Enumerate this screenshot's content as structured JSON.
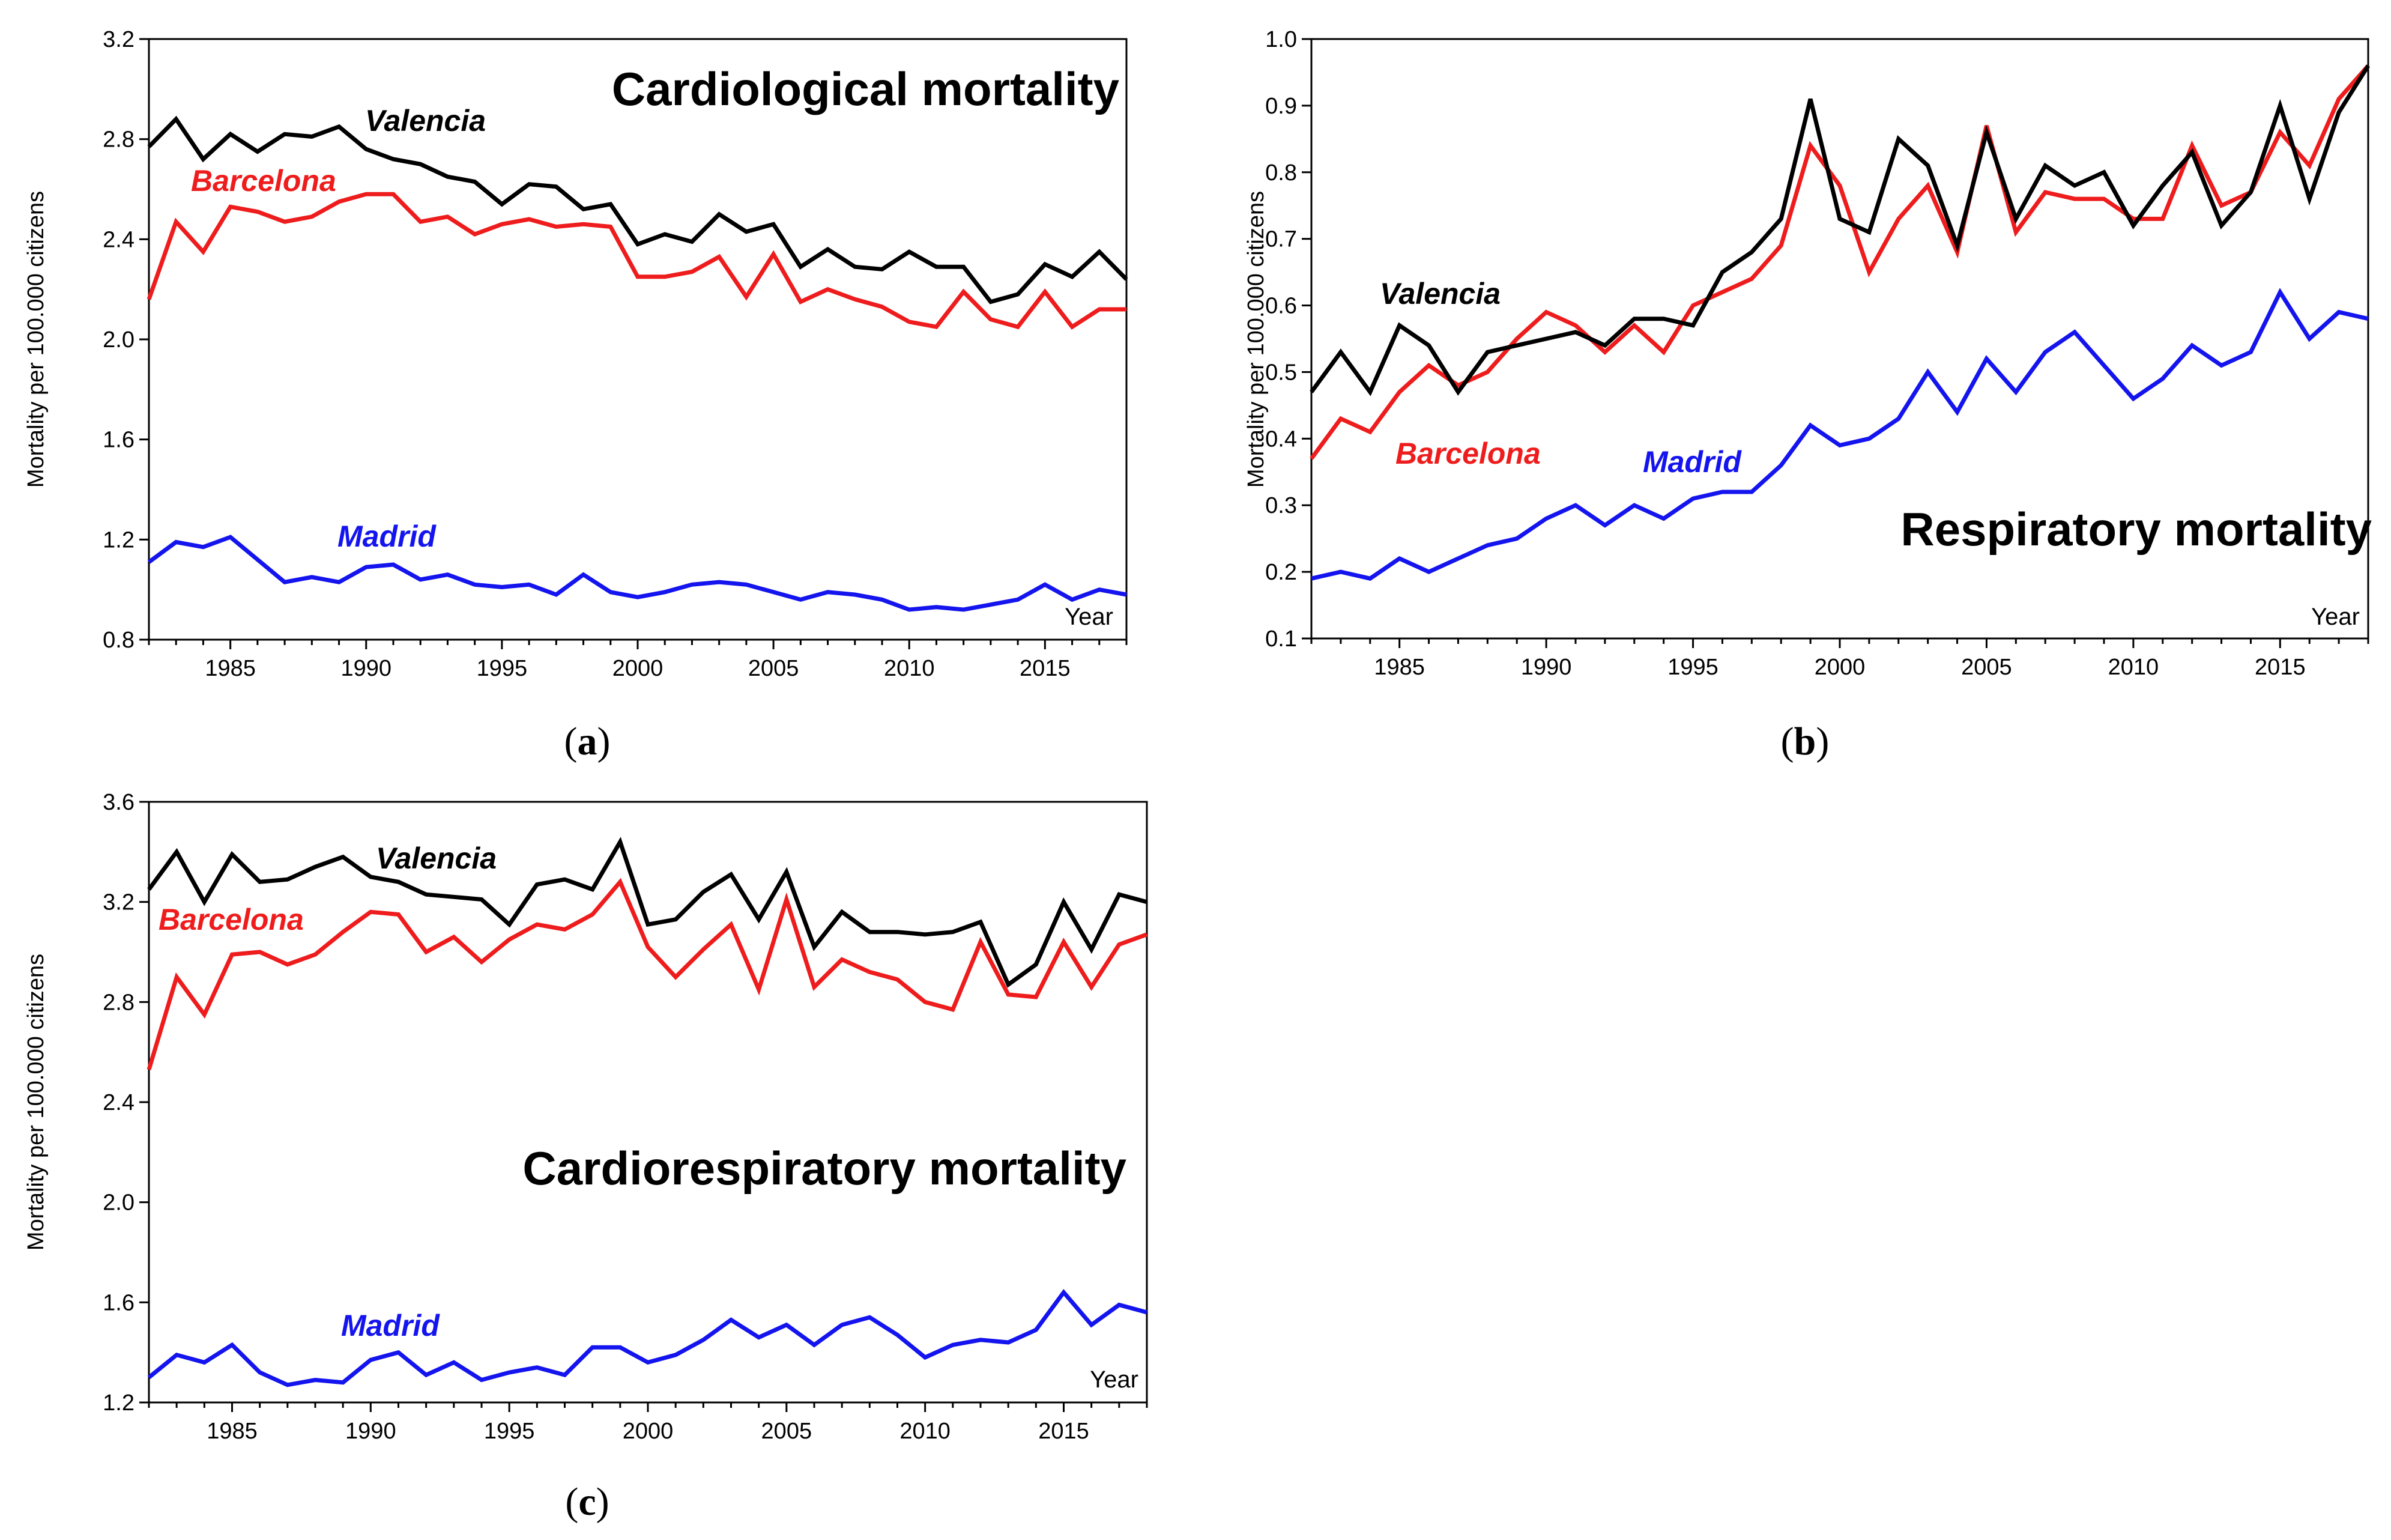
{
  "colors": {
    "valencia": "#000000",
    "barcelona": "#ee1c1c",
    "madrid": "#1414ee"
  },
  "chart_data": [
    {
      "type": "line",
      "panel": "(a)",
      "panel_letter": "a",
      "title": "Cardiological mortality",
      "ylabel": "Mortality per 100.000 citizens",
      "xlabel": "Year",
      "xlim": [
        1982,
        2018
      ],
      "ylim": [
        0.8,
        3.2
      ],
      "yticks": [
        0.8,
        1.2,
        1.6,
        2.0,
        2.4,
        2.8,
        3.2
      ],
      "ytick_labels": [
        "0.8",
        "1.2",
        "1.6",
        "2.0",
        "2.4",
        "2.8",
        "3.2"
      ],
      "xticks": [
        1985,
        1990,
        1995,
        2000,
        2005,
        2010,
        2015
      ],
      "xtick_labels": [
        "1985",
        "1990",
        "1995",
        "2000",
        "2005",
        "2010",
        "2015"
      ],
      "x": [
        1982,
        1983,
        1984,
        1985,
        1986,
        1987,
        1988,
        1989,
        1990,
        1991,
        1992,
        1993,
        1994,
        1995,
        1996,
        1997,
        1998,
        1999,
        2000,
        2001,
        2002,
        2003,
        2004,
        2005,
        2006,
        2007,
        2008,
        2009,
        2010,
        2011,
        2012,
        2013,
        2014,
        2015,
        2016,
        2017,
        2018
      ],
      "series": [
        {
          "name": "Valencia",
          "color": "#000000",
          "values": [
            2.77,
            2.88,
            2.72,
            2.82,
            2.75,
            2.82,
            2.81,
            2.85,
            2.76,
            2.72,
            2.7,
            2.65,
            2.63,
            2.54,
            2.62,
            2.61,
            2.52,
            2.54,
            2.38,
            2.42,
            2.39,
            2.5,
            2.43,
            2.46,
            2.29,
            2.36,
            2.29,
            2.28,
            2.35,
            2.29,
            2.29,
            2.15,
            2.18,
            2.3,
            2.25,
            2.35,
            2.24
          ]
        },
        {
          "name": "Barcelona",
          "color": "#ee1c1c",
          "values": [
            2.16,
            2.47,
            2.35,
            2.53,
            2.51,
            2.47,
            2.49,
            2.55,
            2.58,
            2.58,
            2.47,
            2.49,
            2.42,
            2.46,
            2.48,
            2.45,
            2.46,
            2.45,
            2.25,
            2.25,
            2.27,
            2.33,
            2.17,
            2.34,
            2.15,
            2.2,
            2.16,
            2.13,
            2.07,
            2.05,
            2.19,
            2.08,
            2.05,
            2.19,
            2.05,
            2.12,
            2.12
          ]
        },
        {
          "name": "Madrid",
          "color": "#1414ee",
          "values": [
            1.11,
            1.19,
            1.17,
            1.21,
            1.12,
            1.03,
            1.05,
            1.03,
            1.09,
            1.1,
            1.04,
            1.06,
            1.02,
            1.01,
            1.02,
            0.98,
            1.06,
            0.99,
            0.97,
            0.99,
            1.02,
            1.03,
            1.02,
            0.99,
            0.96,
            0.99,
            0.98,
            0.96,
            0.92,
            0.93,
            0.92,
            0.94,
            0.96,
            1.02,
            0.96,
            1.0,
            0.98
          ]
        }
      ]
    },
    {
      "type": "line",
      "panel": "(b)",
      "panel_letter": "b",
      "title": "Respiratory mortality",
      "ylabel": "Mortality per 100.000 citizens",
      "xlabel": "Year",
      "xlim": [
        1982,
        2018
      ],
      "ylim": [
        0.1,
        1.0
      ],
      "yticks": [
        0.1,
        0.2,
        0.3,
        0.4,
        0.5,
        0.6,
        0.7,
        0.8,
        0.9,
        1.0
      ],
      "ytick_labels": [
        "0.1",
        "0.2",
        "0.3",
        "0.4",
        "0.5",
        "0.6",
        "0.7",
        "0.8",
        "0.9",
        "1.0"
      ],
      "xticks": [
        1985,
        1990,
        1995,
        2000,
        2005,
        2010,
        2015
      ],
      "xtick_labels": [
        "1985",
        "1990",
        "1995",
        "2000",
        "2005",
        "2010",
        "2015"
      ],
      "x": [
        1982,
        1983,
        1984,
        1985,
        1986,
        1987,
        1988,
        1989,
        1990,
        1991,
        1992,
        1993,
        1994,
        1995,
        1996,
        1997,
        1998,
        1999,
        2000,
        2001,
        2002,
        2003,
        2004,
        2005,
        2006,
        2007,
        2008,
        2009,
        2010,
        2011,
        2012,
        2013,
        2014,
        2015,
        2016,
        2017,
        2018
      ],
      "series": [
        {
          "name": "Valencia",
          "color": "#000000",
          "values": [
            0.47,
            0.53,
            0.47,
            0.57,
            0.54,
            0.47,
            0.53,
            0.54,
            0.55,
            0.56,
            0.54,
            0.58,
            0.58,
            0.57,
            0.65,
            0.68,
            0.73,
            0.91,
            0.73,
            0.71,
            0.85,
            0.81,
            0.69,
            0.86,
            0.73,
            0.81,
            0.78,
            0.8,
            0.72,
            0.78,
            0.83,
            0.72,
            0.77,
            0.9,
            0.76,
            0.89,
            0.96
          ]
        },
        {
          "name": "Barcelona",
          "color": "#ee1c1c",
          "values": [
            0.37,
            0.43,
            0.41,
            0.47,
            0.51,
            0.48,
            0.5,
            0.55,
            0.59,
            0.57,
            0.53,
            0.57,
            0.53,
            0.6,
            0.62,
            0.64,
            0.69,
            0.84,
            0.78,
            0.65,
            0.73,
            0.78,
            0.68,
            0.87,
            0.71,
            0.77,
            0.76,
            0.76,
            0.73,
            0.73,
            0.84,
            0.75,
            0.77,
            0.86,
            0.81,
            0.91,
            0.96
          ]
        },
        {
          "name": "Madrid",
          "color": "#1414ee",
          "values": [
            0.19,
            0.2,
            0.19,
            0.22,
            0.2,
            0.22,
            0.24,
            0.25,
            0.28,
            0.3,
            0.27,
            0.3,
            0.28,
            0.31,
            0.32,
            0.32,
            0.36,
            0.42,
            0.39,
            0.4,
            0.43,
            0.5,
            0.44,
            0.52,
            0.47,
            0.53,
            0.56,
            0.51,
            0.46,
            0.49,
            0.54,
            0.51,
            0.53,
            0.62,
            0.55,
            0.59,
            0.58
          ]
        }
      ]
    },
    {
      "type": "line",
      "panel": "(c)",
      "panel_letter": "c",
      "title": "Cardiorespiratory mortality",
      "ylabel": "Mortality per 100.000 citizens",
      "xlabel": "Year",
      "xlim": [
        1982,
        2018
      ],
      "ylim": [
        1.2,
        3.6
      ],
      "yticks": [
        1.2,
        1.6,
        2.0,
        2.4,
        2.8,
        3.2,
        3.6
      ],
      "ytick_labels": [
        "1.2",
        "1.6",
        "2.0",
        "2.4",
        "2.8",
        "3.2",
        "3.6"
      ],
      "xticks": [
        1985,
        1990,
        1995,
        2000,
        2005,
        2010,
        2015
      ],
      "xtick_labels": [
        "1985",
        "1990",
        "1995",
        "2000",
        "2005",
        "2010",
        "2015"
      ],
      "x": [
        1982,
        1983,
        1984,
        1985,
        1986,
        1987,
        1988,
        1989,
        1990,
        1991,
        1992,
        1993,
        1994,
        1995,
        1996,
        1997,
        1998,
        1999,
        2000,
        2001,
        2002,
        2003,
        2004,
        2005,
        2006,
        2007,
        2008,
        2009,
        2010,
        2011,
        2012,
        2013,
        2014,
        2015,
        2016,
        2017,
        2018
      ],
      "series": [
        {
          "name": "Valencia",
          "color": "#000000",
          "values": [
            3.25,
            3.4,
            3.2,
            3.39,
            3.28,
            3.29,
            3.34,
            3.38,
            3.3,
            3.28,
            3.23,
            3.22,
            3.21,
            3.11,
            3.27,
            3.29,
            3.25,
            3.44,
            3.11,
            3.13,
            3.24,
            3.31,
            3.13,
            3.32,
            3.02,
            3.16,
            3.08,
            3.08,
            3.07,
            3.08,
            3.12,
            2.87,
            2.95,
            3.2,
            3.01,
            3.23,
            3.2
          ]
        },
        {
          "name": "Barcelona",
          "color": "#ee1c1c",
          "values": [
            2.53,
            2.9,
            2.75,
            2.99,
            3.0,
            2.95,
            2.99,
            3.08,
            3.16,
            3.15,
            3.0,
            3.06,
            2.96,
            3.05,
            3.11,
            3.09,
            3.15,
            3.28,
            3.02,
            2.9,
            3.01,
            3.11,
            2.85,
            3.21,
            2.86,
            2.97,
            2.92,
            2.89,
            2.8,
            2.77,
            3.04,
            2.83,
            2.82,
            3.04,
            2.86,
            3.03,
            3.07
          ]
        },
        {
          "name": "Madrid",
          "color": "#1414ee",
          "values": [
            1.3,
            1.39,
            1.36,
            1.43,
            1.32,
            1.27,
            1.29,
            1.28,
            1.37,
            1.4,
            1.31,
            1.36,
            1.29,
            1.32,
            1.34,
            1.31,
            1.42,
            1.42,
            1.36,
            1.39,
            1.45,
            1.53,
            1.46,
            1.51,
            1.43,
            1.51,
            1.54,
            1.47,
            1.38,
            1.43,
            1.45,
            1.44,
            1.49,
            1.64,
            1.51,
            1.59,
            1.56
          ]
        }
      ]
    }
  ]
}
